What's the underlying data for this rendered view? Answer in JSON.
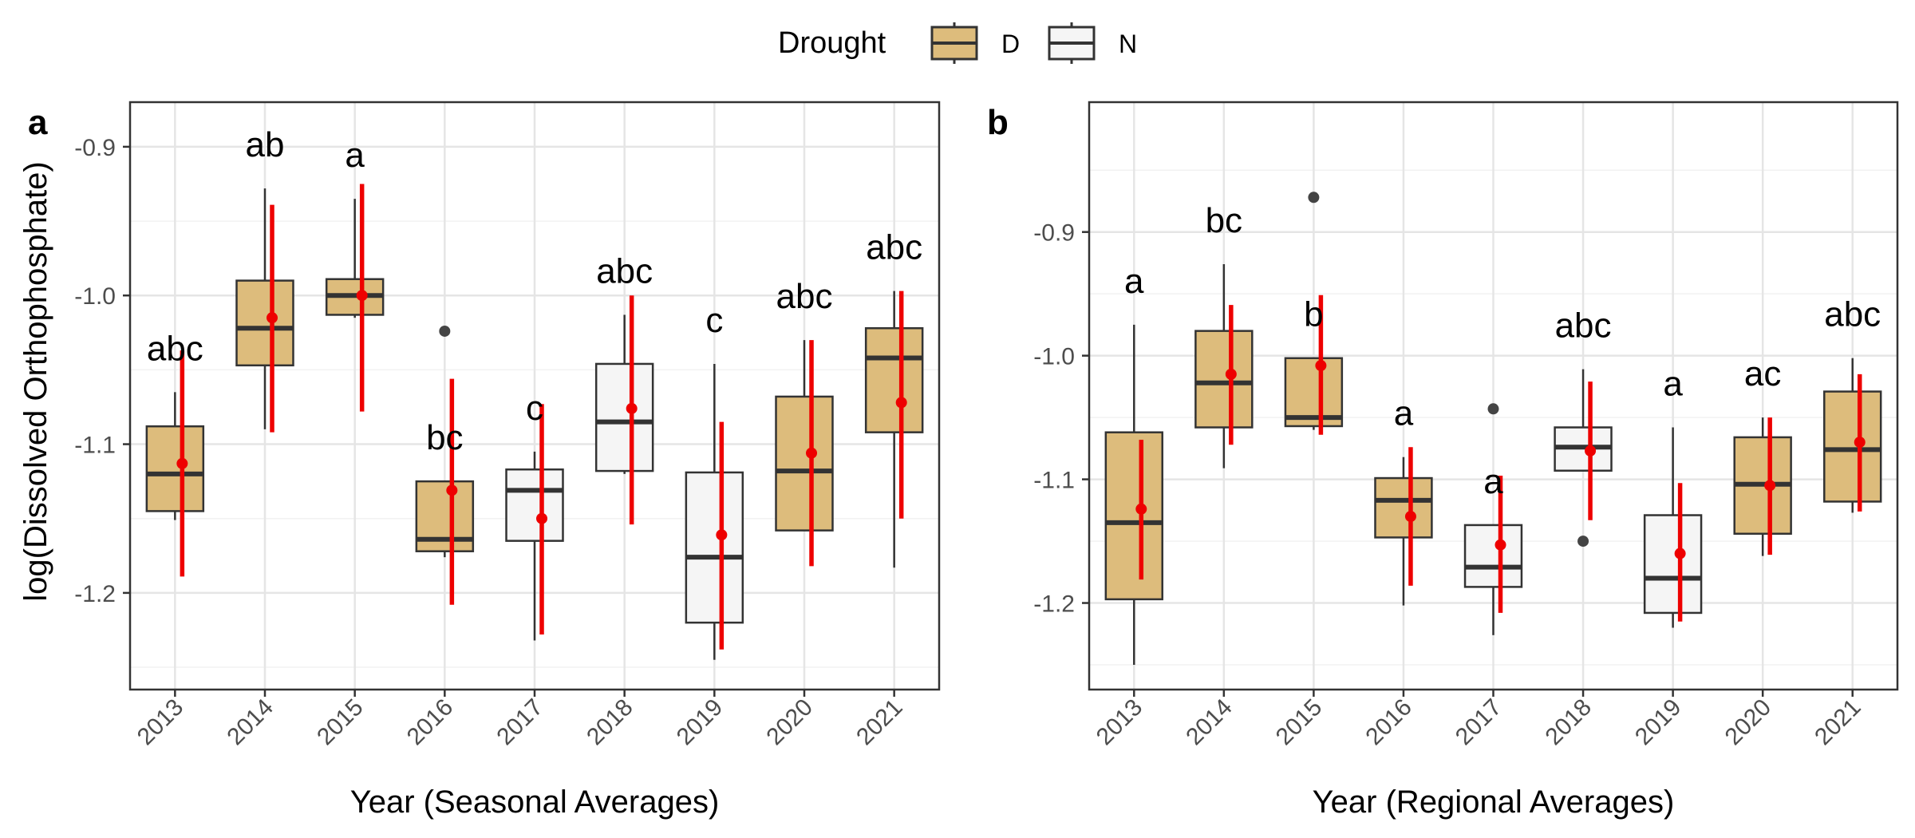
{
  "legend": {
    "title": "Drought",
    "items": [
      {
        "key": "D",
        "label": "D",
        "fill": "#DDBC7C"
      },
      {
        "key": "N",
        "label": "N",
        "fill": "#F5F5F5"
      }
    ],
    "position": "top"
  },
  "ylabel": "log(Dissolved Orthophosphate)",
  "colors": {
    "D": "#DDBC7C",
    "N": "#F5F5F5",
    "box_stroke": "#333333",
    "mean_ci": "#EE0000",
    "outlier": "#444444",
    "panel_border": "#333333",
    "grid_major": "#E5E5E5",
    "grid_minor": "#F2F2F2"
  },
  "chart_data": [
    {
      "type": "box",
      "tag": "a",
      "xlabel": "Year (Seasonal Averages)",
      "ylabel": "log(Dissolved Orthophosphate)",
      "ylim": [
        -1.265,
        -0.87
      ],
      "yticks": [
        -1.2,
        -1.1,
        -1.0,
        -0.9
      ],
      "ytick_labels": [
        "-1.2",
        "-1.1",
        "-1.0",
        "-0.9"
      ],
      "grid": true,
      "categories": [
        "2013",
        "2014",
        "2015",
        "2016",
        "2017",
        "2018",
        "2019",
        "2020",
        "2021"
      ],
      "boxes": [
        {
          "year": "2013",
          "drought": "D",
          "wlo": -1.151,
          "q1": -1.145,
          "median": -1.12,
          "q3": -1.088,
          "whi": -1.065,
          "outliers": [],
          "mean": -1.113,
          "ci": [
            -1.189,
            -1.037
          ],
          "letter": "abc"
        },
        {
          "year": "2014",
          "drought": "D",
          "wlo": -1.09,
          "q1": -1.047,
          "median": -1.022,
          "q3": -0.99,
          "whi": -0.928,
          "outliers": [],
          "mean": -1.015,
          "ci": [
            -1.092,
            -0.939
          ],
          "letter": "ab"
        },
        {
          "year": "2015",
          "drought": "D",
          "wlo": -1.015,
          "q1": -1.013,
          "median": -1.0,
          "q3": -0.989,
          "whi": -0.935,
          "outliers": [],
          "mean": -1.0,
          "ci": [
            -1.078,
            -0.925
          ],
          "letter": "a"
        },
        {
          "year": "2016",
          "drought": "D",
          "wlo": -1.176,
          "q1": -1.172,
          "median": -1.164,
          "q3": -1.125,
          "whi": -1.125,
          "outliers": [
            -1.024
          ],
          "mean": -1.131,
          "ci": [
            -1.208,
            -1.056
          ],
          "letter": "bc"
        },
        {
          "year": "2017",
          "drought": "N",
          "wlo": -1.232,
          "q1": -1.165,
          "median": -1.131,
          "q3": -1.117,
          "whi": -1.105,
          "outliers": [],
          "mean": -1.15,
          "ci": [
            -1.228,
            -1.073
          ],
          "letter": "c"
        },
        {
          "year": "2018",
          "drought": "N",
          "wlo": -1.12,
          "q1": -1.118,
          "median": -1.085,
          "q3": -1.046,
          "whi": -1.013,
          "outliers": [],
          "mean": -1.076,
          "ci": [
            -1.154,
            -1.0
          ],
          "letter": "abc"
        },
        {
          "year": "2019",
          "drought": "N",
          "wlo": -1.245,
          "q1": -1.22,
          "median": -1.176,
          "q3": -1.119,
          "whi": -1.046,
          "outliers": [],
          "mean": -1.161,
          "ci": [
            -1.238,
            -1.085
          ],
          "letter": "c"
        },
        {
          "year": "2020",
          "drought": "D",
          "wlo": -1.158,
          "q1": -1.158,
          "median": -1.118,
          "q3": -1.068,
          "whi": -1.03,
          "outliers": [],
          "mean": -1.106,
          "ci": [
            -1.182,
            -1.03
          ],
          "letter": "abc"
        },
        {
          "year": "2021",
          "drought": "D",
          "wlo": -1.183,
          "q1": -1.092,
          "median": -1.042,
          "q3": -1.022,
          "whi": -0.997,
          "outliers": [],
          "mean": -1.072,
          "ci": [
            -1.15,
            -0.997
          ],
          "letter": "abc"
        }
      ]
    },
    {
      "type": "box",
      "tag": "b",
      "xlabel": "Year (Regional Averages)",
      "ylabel": "",
      "ylim": [
        -1.27,
        -0.795
      ],
      "yticks": [
        -1.2,
        -1.1,
        -1.0,
        -0.9
      ],
      "ytick_labels": [
        "-1.2",
        "-1.1",
        "-1.0",
        "-0.9"
      ],
      "grid": true,
      "categories": [
        "2013",
        "2014",
        "2015",
        "2016",
        "2017",
        "2018",
        "2019",
        "2020",
        "2021"
      ],
      "boxes": [
        {
          "year": "2013",
          "drought": "D",
          "wlo": -1.25,
          "q1": -1.197,
          "median": -1.135,
          "q3": -1.062,
          "whi": -0.975,
          "outliers": [],
          "mean": -1.124,
          "ci": [
            -1.181,
            -1.068
          ],
          "letter": "a"
        },
        {
          "year": "2014",
          "drought": "D",
          "wlo": -1.091,
          "q1": -1.058,
          "median": -1.022,
          "q3": -0.98,
          "whi": -0.926,
          "outliers": [],
          "mean": -1.015,
          "ci": [
            -1.072,
            -0.959
          ],
          "letter": "bc"
        },
        {
          "year": "2015",
          "drought": "D",
          "wlo": -1.06,
          "q1": -1.057,
          "median": -1.05,
          "q3": -1.002,
          "whi": -1.002,
          "outliers": [
            -0.872
          ],
          "mean": -1.008,
          "ci": [
            -1.064,
            -0.951
          ],
          "letter": "b"
        },
        {
          "year": "2016",
          "drought": "D",
          "wlo": -1.202,
          "q1": -1.147,
          "median": -1.117,
          "q3": -1.099,
          "whi": -1.082,
          "outliers": [],
          "mean": -1.13,
          "ci": [
            -1.186,
            -1.074
          ],
          "letter": "a"
        },
        {
          "year": "2017",
          "drought": "N",
          "wlo": -1.226,
          "q1": -1.187,
          "median": -1.171,
          "q3": -1.137,
          "whi": -1.137,
          "outliers": [
            -1.043
          ],
          "mean": -1.153,
          "ci": [
            -1.208,
            -1.097
          ],
          "letter": "a"
        },
        {
          "year": "2018",
          "drought": "N",
          "wlo": -1.093,
          "q1": -1.093,
          "median": -1.074,
          "q3": -1.058,
          "whi": -1.011,
          "outliers": [
            -1.15
          ],
          "mean": -1.077,
          "ci": [
            -1.133,
            -1.021
          ],
          "letter": "abc"
        },
        {
          "year": "2019",
          "drought": "N",
          "wlo": -1.22,
          "q1": -1.208,
          "median": -1.18,
          "q3": -1.129,
          "whi": -1.058,
          "outliers": [],
          "mean": -1.16,
          "ci": [
            -1.215,
            -1.103
          ],
          "letter": "a"
        },
        {
          "year": "2020",
          "drought": "D",
          "wlo": -1.162,
          "q1": -1.144,
          "median": -1.104,
          "q3": -1.066,
          "whi": -1.05,
          "outliers": [],
          "mean": -1.105,
          "ci": [
            -1.161,
            -1.05
          ],
          "letter": "ac"
        },
        {
          "year": "2021",
          "drought": "D",
          "wlo": -1.127,
          "q1": -1.118,
          "median": -1.076,
          "q3": -1.029,
          "whi": -1.002,
          "outliers": [],
          "mean": -1.07,
          "ci": [
            -1.126,
            -1.015
          ],
          "letter": "abc"
        }
      ]
    }
  ]
}
